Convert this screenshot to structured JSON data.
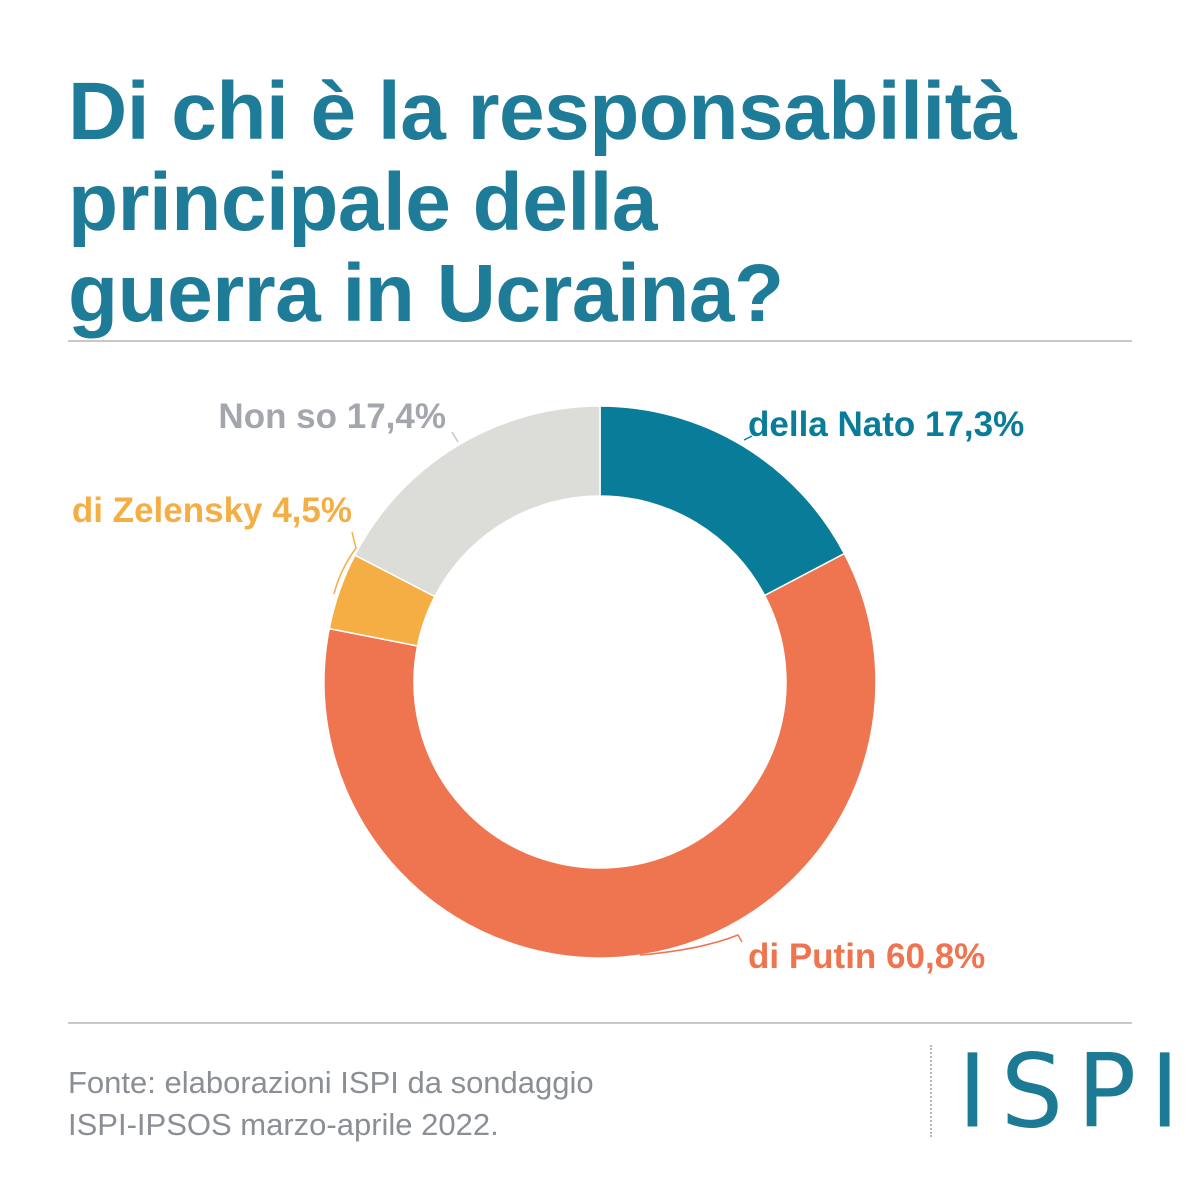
{
  "title": {
    "line1": "Di chi è la responsabilità",
    "line2": "principale della",
    "line3": "guerra in Ucraina?"
  },
  "chart_data": {
    "type": "pie",
    "donut": true,
    "unit": "%",
    "slices": [
      {
        "label": "della Nato 17,3%",
        "value": 17.3,
        "color": "#087c99"
      },
      {
        "label": "di Putin 60,8%",
        "value": 60.8,
        "color": "#ef7450"
      },
      {
        "label": "di Zelensky 4,5%",
        "value": 4.5,
        "color": "#f5ae43"
      },
      {
        "label": "Non so 17,4%",
        "value": 17.4,
        "color": "#dcdcd8"
      }
    ]
  },
  "footer": {
    "line1": "Fonte: elaborazioni ISPI da sondaggio",
    "line2": "ISPI-IPSOS marzo-aprile 2022."
  },
  "logo": {
    "text": "ISPI",
    "color": "#1d7a94"
  }
}
